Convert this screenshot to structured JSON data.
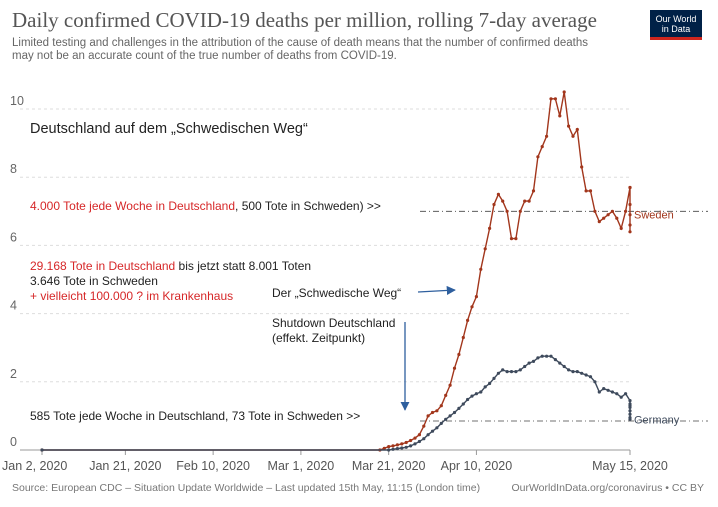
{
  "header": {
    "title": "Daily confirmed COVID-19 deaths per million, rolling 7-day average",
    "subtitle": "Limited testing and challenges in the attribution of the cause of death means that the number of confirmed deaths may not be an accurate count of the true number of deaths from COVID-19.",
    "logo_line1": "Our World",
    "logo_line2": "in Data"
  },
  "footer": {
    "source": "Source: European CDC – Situation Update Worldwide – Last updated 15th May, 11:15 (London time)",
    "credit": "OurWorldInData.org/coronavirus • CC BY"
  },
  "annotations": {
    "heading": "Deutschland auf dem „Schwedischen Weg“",
    "weekly_top_red": "4.000 Tote jede Woche in Deutschland",
    "weekly_top_black": ", 500 Tote in Schweden) >>",
    "total_red": "29.168 Tote in Deutschland",
    "total_black": " bis jetzt statt 8.001 Toten",
    "sweden_total": "3.646 Tote in Schweden",
    "hospital": "+ vielleicht 100.000 ? im Krankenhaus",
    "swedish_way": "Der „Schwedische Weg“",
    "shutdown_1": "Shutdown Deutschland",
    "shutdown_2": "(effekt. Zeitpunkt)",
    "weekly_bottom": "585 Tote jede Woche in Deutschland, 73 Tote in Schweden >>"
  },
  "colors": {
    "sweden": "#a2361c",
    "germany": "#3e4a5c",
    "grid": "#dddddd",
    "arrow": "#2e5f9e",
    "annotation_red": "#d62728"
  },
  "chart_data": {
    "type": "line",
    "title": "Daily confirmed COVID-19 deaths per million, rolling 7-day average",
    "xlabel": "",
    "ylabel": "",
    "ylim": [
      0,
      10.5
    ],
    "y_ticks": [
      0,
      2,
      4,
      6,
      8,
      10
    ],
    "x_tick_labels": [
      "Jan 2, 2020",
      "Jan 21, 2020",
      "Feb 10, 2020",
      "Mar 1, 2020",
      "Mar 21, 2020",
      "Apr 10, 2020",
      "May 15, 2020"
    ],
    "x_tick_days": [
      0,
      19,
      39,
      59,
      79,
      99,
      134
    ],
    "start_date": "Jan 2, 2020",
    "end_day": 134,
    "legend": "end-of-line labels",
    "reference_lines": [
      7.0,
      0.85
    ],
    "series": [
      {
        "name": "Sweden",
        "points": [
          [
            0,
            0
          ],
          [
            77,
            0
          ],
          [
            78,
            0.05
          ],
          [
            79,
            0.1
          ],
          [
            80,
            0.12
          ],
          [
            81,
            0.15
          ],
          [
            82,
            0.18
          ],
          [
            83,
            0.22
          ],
          [
            84,
            0.28
          ],
          [
            85,
            0.35
          ],
          [
            86,
            0.45
          ],
          [
            87,
            0.7
          ],
          [
            88,
            1.0
          ],
          [
            89,
            1.1
          ],
          [
            90,
            1.15
          ],
          [
            91,
            1.3
          ],
          [
            92,
            1.6
          ],
          [
            93,
            1.9
          ],
          [
            94,
            2.4
          ],
          [
            95,
            2.8
          ],
          [
            96,
            3.3
          ],
          [
            97,
            3.8
          ],
          [
            98,
            4.2
          ],
          [
            99,
            4.5
          ],
          [
            100,
            5.3
          ],
          [
            101,
            5.9
          ],
          [
            102,
            6.5
          ],
          [
            103,
            7.2
          ],
          [
            104,
            7.5
          ],
          [
            105,
            7.3
          ],
          [
            106,
            7.0
          ],
          [
            107,
            6.2
          ],
          [
            108,
            6.2
          ],
          [
            109,
            7.0
          ],
          [
            110,
            7.3
          ],
          [
            111,
            7.3
          ],
          [
            112,
            7.6
          ],
          [
            113,
            8.6
          ],
          [
            114,
            8.9
          ],
          [
            115,
            9.2
          ],
          [
            116,
            10.3
          ],
          [
            117,
            10.3
          ],
          [
            118,
            9.8
          ],
          [
            119,
            10.5
          ],
          [
            120,
            9.5
          ],
          [
            121,
            9.2
          ],
          [
            122,
            9.4
          ],
          [
            123,
            8.3
          ],
          [
            124,
            7.6
          ],
          [
            125,
            7.6
          ],
          [
            126,
            7.0
          ],
          [
            127,
            6.7
          ],
          [
            128,
            6.8
          ],
          [
            129,
            6.9
          ],
          [
            130,
            7.0
          ],
          [
            131,
            6.8
          ],
          [
            132,
            6.5
          ],
          [
            133,
            7.0
          ],
          [
            134,
            7.7
          ],
          [
            135,
            7.7
          ],
          [
            136,
            6.6
          ],
          [
            137,
            6.4
          ],
          [
            138,
            7.2
          ],
          [
            139,
            6.9
          ]
        ]
      },
      {
        "name": "Germany",
        "points": [
          [
            0,
            0
          ],
          [
            79,
            0
          ],
          [
            80,
            0.02
          ],
          [
            81,
            0.04
          ],
          [
            82,
            0.06
          ],
          [
            83,
            0.08
          ],
          [
            84,
            0.12
          ],
          [
            85,
            0.18
          ],
          [
            86,
            0.25
          ],
          [
            87,
            0.33
          ],
          [
            88,
            0.45
          ],
          [
            89,
            0.55
          ],
          [
            90,
            0.65
          ],
          [
            91,
            0.78
          ],
          [
            92,
            0.9
          ],
          [
            93,
            1.0
          ],
          [
            94,
            1.1
          ],
          [
            95,
            1.22
          ],
          [
            96,
            1.35
          ],
          [
            97,
            1.48
          ],
          [
            98,
            1.58
          ],
          [
            99,
            1.65
          ],
          [
            100,
            1.7
          ],
          [
            101,
            1.85
          ],
          [
            102,
            1.95
          ],
          [
            103,
            2.1
          ],
          [
            104,
            2.25
          ],
          [
            105,
            2.35
          ],
          [
            106,
            2.3
          ],
          [
            107,
            2.3
          ],
          [
            108,
            2.3
          ],
          [
            109,
            2.35
          ],
          [
            110,
            2.45
          ],
          [
            111,
            2.55
          ],
          [
            112,
            2.6
          ],
          [
            113,
            2.7
          ],
          [
            114,
            2.75
          ],
          [
            115,
            2.75
          ],
          [
            116,
            2.75
          ],
          [
            117,
            2.65
          ],
          [
            118,
            2.55
          ],
          [
            119,
            2.45
          ],
          [
            120,
            2.35
          ],
          [
            121,
            2.3
          ],
          [
            122,
            2.3
          ],
          [
            123,
            2.25
          ],
          [
            124,
            2.2
          ],
          [
            125,
            2.15
          ],
          [
            126,
            2.0
          ],
          [
            127,
            1.7
          ],
          [
            128,
            1.8
          ],
          [
            129,
            1.75
          ],
          [
            130,
            1.7
          ],
          [
            131,
            1.65
          ],
          [
            132,
            1.55
          ],
          [
            133,
            1.65
          ],
          [
            134,
            1.45
          ],
          [
            135,
            1.35
          ],
          [
            136,
            1.3
          ],
          [
            137,
            1.25
          ],
          [
            138,
            1.15
          ],
          [
            139,
            1.05
          ],
          [
            140,
            0.95
          ],
          [
            141,
            0.9
          ]
        ]
      }
    ]
  }
}
